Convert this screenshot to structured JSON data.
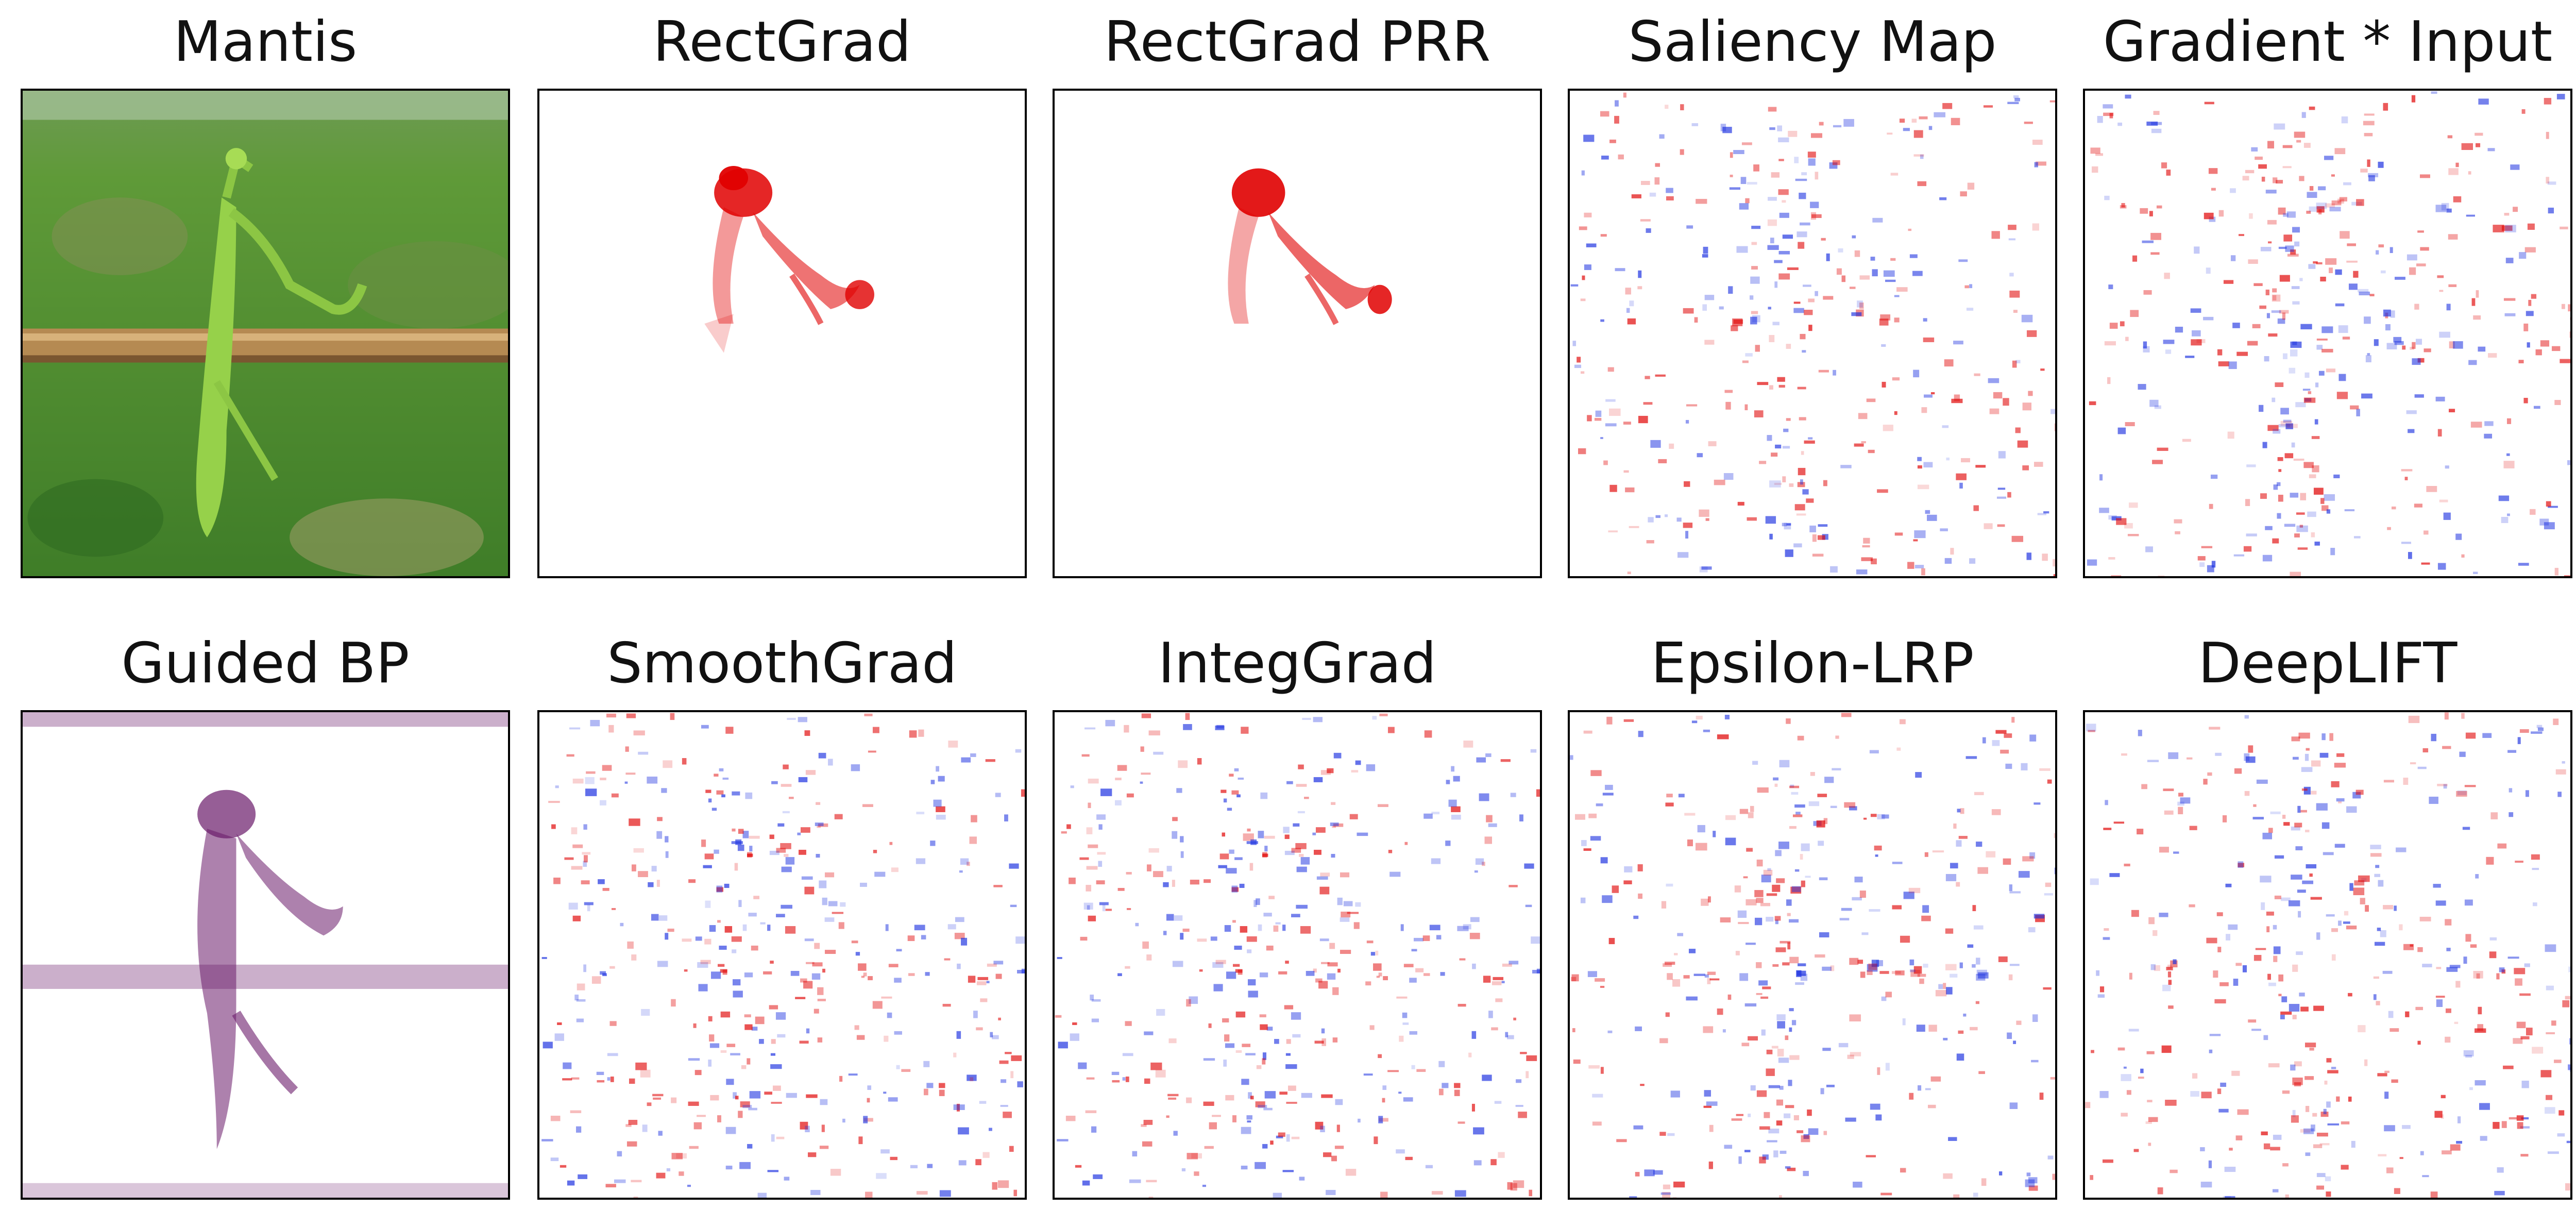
{
  "figure": {
    "panels": [
      {
        "id": "mantis",
        "title": "Mantis",
        "kind": "photo"
      },
      {
        "id": "rectgrad",
        "title": "RectGrad",
        "kind": "positive_sparse"
      },
      {
        "id": "rectgrad-prr",
        "title": "RectGrad PRR",
        "kind": "positive_sparse"
      },
      {
        "id": "saliency-map",
        "title": "Saliency Map",
        "kind": "noisy_signed"
      },
      {
        "id": "gradient-input",
        "title": "Gradient * Input",
        "kind": "noisy_signed"
      },
      {
        "id": "guided-bp",
        "title": "Guided BP",
        "kind": "purple_structure"
      },
      {
        "id": "smoothgrad",
        "title": "SmoothGrad",
        "kind": "noisy_signed"
      },
      {
        "id": "integgrad",
        "title": "IntegGrad",
        "kind": "noisy_signed"
      },
      {
        "id": "epsilon-lrp",
        "title": "Epsilon-LRP",
        "kind": "noisy_signed"
      },
      {
        "id": "deeplift",
        "title": "DeepLIFT",
        "kind": "noisy_signed"
      }
    ],
    "colors": {
      "positive": "#e00000",
      "negative": "#1a2fe0",
      "purple": "#6a1a6a",
      "grass": "#4f8f2e",
      "mantis": "#96d14a",
      "stick": "#b58a52",
      "frame": "#000000"
    }
  }
}
